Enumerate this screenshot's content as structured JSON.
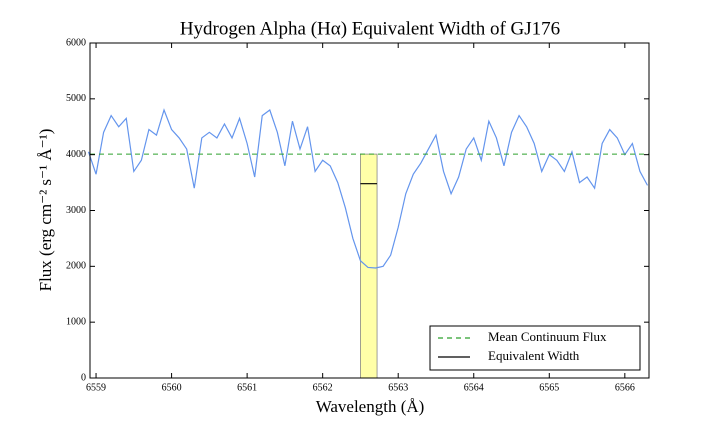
{
  "chart_data": {
    "type": "line",
    "title": "Hydrogen Alpha (Hα) Equivalent Width of GJ176",
    "x_label": "Wavelength (Å)",
    "y_label": "Flux (erg cm⁻² s⁻¹ Å⁻¹)",
    "color": "#6495ed",
    "x": [
      6558.9,
      6559.0,
      6559.1,
      6559.2,
      6559.3,
      6559.4,
      6559.5,
      6559.6,
      6559.7,
      6559.8,
      6559.9,
      6560.0,
      6560.1,
      6560.2,
      6560.3,
      6560.4,
      6560.5,
      6560.6,
      6560.7,
      6560.8,
      6560.9,
      6561.0,
      6561.1,
      6561.2,
      6561.3,
      6561.4,
      6561.5,
      6561.6,
      6561.7,
      6561.8,
      6561.9,
      6562.0,
      6562.1,
      6562.2,
      6562.3,
      6562.4,
      6562.5,
      6562.6,
      6562.7,
      6562.8,
      6562.9,
      6563.0,
      6563.1,
      6563.2,
      6563.3,
      6563.4,
      6563.5,
      6563.6,
      6563.7,
      6563.8,
      6563.9,
      6564.0,
      6564.1,
      6564.2,
      6564.3,
      6564.4,
      6564.5,
      6564.6,
      6564.7,
      6564.8,
      6564.9,
      6565.0,
      6565.1,
      6565.2,
      6565.3,
      6565.4,
      6565.5,
      6565.6,
      6565.7,
      6565.8,
      6565.9,
      6566.0,
      6566.1,
      6566.2,
      6566.3
    ],
    "values": [
      4050,
      3650,
      4400,
      4700,
      4500,
      4650,
      3700,
      3900,
      4450,
      4350,
      4800,
      4450,
      4300,
      4100,
      3400,
      4300,
      4400,
      4300,
      4550,
      4300,
      4650,
      4200,
      3600,
      4700,
      4800,
      4400,
      3800,
      4600,
      4100,
      4500,
      3700,
      3900,
      3800,
      3500,
      3050,
      2500,
      2100,
      1980,
      1970,
      2000,
      2200,
      2700,
      3300,
      3650,
      3850,
      4100,
      4350,
      3700,
      3300,
      3600,
      4100,
      4300,
      3900,
      4600,
      4300,
      3800,
      4400,
      4700,
      4500,
      4200,
      3700,
      4000,
      3900,
      3700,
      4050,
      3500,
      3600,
      3400,
      4200,
      4450,
      4300,
      4000,
      4200,
      3700,
      3450
    ],
    "continuum": {
      "name": "Mean Continuum Flux",
      "value": 4010,
      "color": "#2ca02c"
    },
    "equivalent_width": {
      "name": "Equivalent Width",
      "xrange": [
        6562.5,
        6562.72
      ],
      "value": 3480,
      "color": "#000000",
      "fill": "#ffffa8"
    },
    "xlim": [
      6558.92,
      6566.32
    ],
    "ylim": [
      0,
      6000
    ],
    "xticks": [
      6559,
      6560,
      6561,
      6562,
      6563,
      6564,
      6565,
      6566
    ],
    "yticks": [
      0,
      1000,
      2000,
      3000,
      4000,
      5000,
      6000
    ],
    "legend": "lower right"
  }
}
